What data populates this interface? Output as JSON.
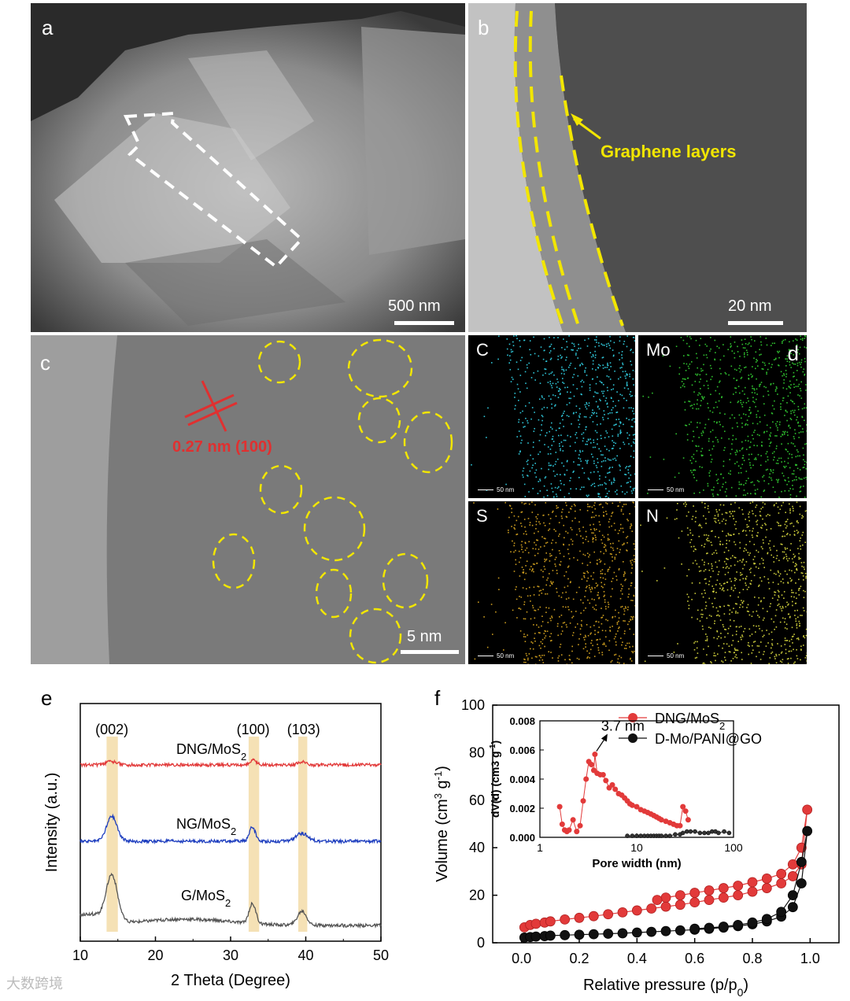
{
  "panels": {
    "a": {
      "label": "a",
      "scalebar": "500 nm"
    },
    "b": {
      "label": "b",
      "scalebar": "20 nm",
      "annotation": "Graphene layers"
    },
    "c": {
      "label": "c",
      "scalebar": "5 nm",
      "annotation": "0.27 nm (100)"
    },
    "d": {
      "label": "d",
      "maps": [
        {
          "element": "C",
          "color": "#2ec4d6",
          "scalebar": "50 nm"
        },
        {
          "element": "Mo",
          "color": "#2fbf2f",
          "scalebar": "50 nm"
        },
        {
          "element": "S",
          "color": "#c99a1e",
          "scalebar": "50 nm"
        },
        {
          "element": "N",
          "color": "#c8c83a",
          "scalebar": "50 nm"
        }
      ]
    },
    "e": {
      "label": "e"
    },
    "f": {
      "label": "f"
    }
  },
  "watermark": "大数跨境",
  "chart_data": [
    {
      "type": "line",
      "id": "xrd",
      "xlabel": "2 Theta (Degree)",
      "ylabel": "Intensity (a.u.)",
      "xlim": [
        10,
        50
      ],
      "xticks": [
        10,
        20,
        30,
        40,
        50
      ],
      "yticks": false,
      "peak_labels": [
        {
          "text": "(002)",
          "x": 14.2
        },
        {
          "text": "(100)",
          "x": 33.0
        },
        {
          "text": "(103)",
          "x": 39.5
        }
      ],
      "highlight_bands": [
        [
          13.5,
          15.0
        ],
        [
          32.4,
          33.8
        ],
        [
          39.0,
          40.2
        ]
      ],
      "series": [
        {
          "name": "DNG/MoS",
          "sub": "2",
          "color": "#e23a3a",
          "baseline": 0,
          "peaks": [
            [
              14.2,
              4,
              0.8
            ],
            [
              33.0,
              6,
              0.4
            ],
            [
              39.5,
              4,
              0.5
            ]
          ],
          "hump": 0,
          "noise": 2
        },
        {
          "name": "NG/MoS",
          "sub": "2",
          "color": "#1f3fbf",
          "baseline": 0,
          "peaks": [
            [
              14.2,
              32,
              0.7
            ],
            [
              32.9,
              18,
              0.4
            ],
            [
              39.5,
              10,
              0.8
            ]
          ],
          "hump": 0,
          "noise": 2
        },
        {
          "name": "G/MoS",
          "sub": "2",
          "color": "#555555",
          "baseline": 0,
          "peaks": [
            [
              14.2,
              58,
              0.75
            ],
            [
              32.9,
              25,
              0.45
            ],
            [
              39.5,
              18,
              0.6
            ]
          ],
          "hump": 8,
          "noise": 2
        }
      ]
    },
    {
      "type": "scatter",
      "id": "bet",
      "xlabel": "Relative pressure (p/p",
      "xlabel_sub": "0",
      "xlabel_end": ")",
      "ylabel": "Volume (cm",
      "ylabel_sup": "3",
      "ylabel_mid": " g",
      "ylabel_sup2": "-1",
      "ylabel_end": ")",
      "xlim": [
        -0.1,
        1.1
      ],
      "ylim": [
        0,
        100
      ],
      "xticks": [
        0.0,
        0.2,
        0.4,
        0.6,
        0.8,
        1.0
      ],
      "yticks": [
        0,
        20,
        40,
        60,
        80,
        100
      ],
      "series": [
        {
          "name": "DNG/MoS",
          "sub": "2",
          "color": "#e23a3a",
          "x": [
            0.01,
            0.03,
            0.05,
            0.08,
            0.1,
            0.15,
            0.2,
            0.25,
            0.3,
            0.35,
            0.4,
            0.45,
            0.5,
            0.55,
            0.6,
            0.65,
            0.7,
            0.75,
            0.8,
            0.85,
            0.9,
            0.94,
            0.97,
            0.99,
            0.97,
            0.94,
            0.9,
            0.85,
            0.8,
            0.75,
            0.7,
            0.65,
            0.6,
            0.55,
            0.5,
            0.47
          ],
          "y": [
            6.5,
            7.5,
            8,
            8.5,
            9,
            9.8,
            10.5,
            11.2,
            12,
            12.8,
            13.6,
            14.4,
            15.2,
            16,
            17,
            18,
            19,
            20,
            21.5,
            23,
            25,
            28,
            33,
            56,
            40,
            33,
            29,
            27,
            25.5,
            24,
            23,
            22,
            21,
            20,
            19,
            18
          ]
        },
        {
          "name": "D-Mo/PANI@GO",
          "sub": "",
          "color": "#111111",
          "x": [
            0.01,
            0.03,
            0.05,
            0.08,
            0.1,
            0.15,
            0.2,
            0.25,
            0.3,
            0.35,
            0.4,
            0.45,
            0.5,
            0.55,
            0.6,
            0.65,
            0.7,
            0.75,
            0.8,
            0.85,
            0.9,
            0.94,
            0.97,
            0.99,
            0.97,
            0.94,
            0.9,
            0.85,
            0.8,
            0.75,
            0.7,
            0.65,
            0.6
          ],
          "y": [
            2.2,
            2.4,
            2.6,
            2.8,
            3,
            3.2,
            3.4,
            3.6,
            3.8,
            4,
            4.3,
            4.6,
            4.9,
            5.2,
            5.5,
            5.9,
            6.4,
            7,
            7.8,
            9,
            11,
            15,
            25,
            47,
            34,
            20,
            13,
            10,
            8.5,
            7.5,
            6.8,
            6.3,
            5.9
          ]
        }
      ],
      "inset": {
        "type": "scatter",
        "xlabel": "Pore width (nm)",
        "ylabel": "dV(d) (cm3 g",
        "ylabel_sup": "-1",
        "ylabel_end": ")",
        "xscale": "log",
        "xlim": [
          1,
          100
        ],
        "ylim": [
          0,
          0.008
        ],
        "xticks": [
          1,
          10,
          100
        ],
        "yticks": [
          0.0,
          0.002,
          0.004,
          0.006,
          0.008
        ],
        "annotation": "3.7 nm",
        "series": [
          {
            "name": "DNG/MoS2",
            "color": "#e23a3a",
            "x": [
              1.6,
              1.7,
              1.8,
              1.9,
              2.0,
              2.2,
              2.4,
              2.6,
              2.8,
              3.0,
              3.2,
              3.4,
              3.6,
              3.7,
              3.9,
              4.2,
              4.5,
              4.8,
              5.2,
              5.6,
              6,
              6.5,
              7,
              7.5,
              8,
              8.5,
              9,
              10,
              11,
              12,
              13,
              14,
              15,
              16,
              17,
              18,
              20,
              22,
              24,
              26,
              28,
              30,
              32,
              34
            ],
            "y": [
              0.0021,
              0.0009,
              0.0005,
              0.0004,
              0.0005,
              0.0012,
              0.0004,
              0.0008,
              0.0025,
              0.004,
              0.0052,
              0.005,
              0.0046,
              0.0057,
              0.0044,
              0.0043,
              0.0043,
              0.0039,
              0.0034,
              0.0036,
              0.0033,
              0.003,
              0.0029,
              0.0027,
              0.0025,
              0.0023,
              0.0022,
              0.0021,
              0.0019,
              0.0018,
              0.0017,
              0.0016,
              0.0015,
              0.0014,
              0.0013,
              0.0012,
              0.0011,
              0.001,
              0.0009,
              0.0008,
              0.0008,
              0.0021,
              0.0018,
              0.0012
            ]
          },
          {
            "name": "D-Mo/PANI@GO",
            "color": "#333333",
            "x": [
              8,
              9,
              10,
              11,
              12,
              13,
              14,
              15,
              16,
              17,
              18,
              20,
              22,
              25,
              28,
              30,
              33,
              36,
              40,
              45,
              50,
              55,
              60,
              65,
              70,
              80,
              90
            ],
            "y": [
              0.0001,
              0.0001,
              0.0001,
              0.0001,
              0.0001,
              0.0001,
              0.0001,
              0.0001,
              0.0001,
              0.0001,
              0.0001,
              0.0001,
              0.0001,
              0.0002,
              0.0002,
              0.0003,
              0.0004,
              0.0004,
              0.0004,
              0.0003,
              0.0003,
              0.0003,
              0.0004,
              0.0004,
              0.0003,
              0.0004,
              0.0003
            ]
          }
        ]
      }
    }
  ]
}
